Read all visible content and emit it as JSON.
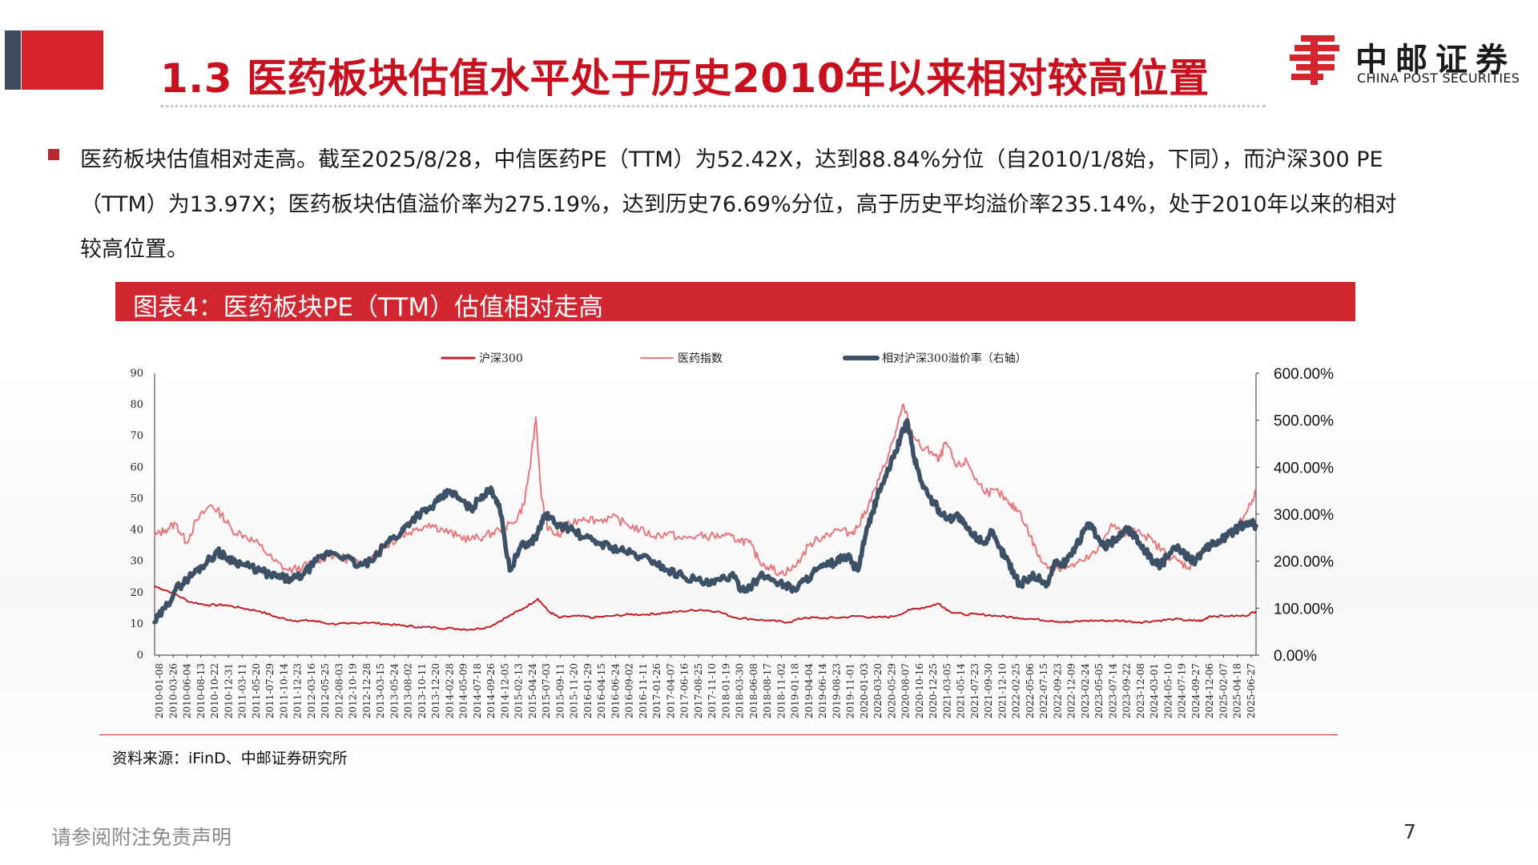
{
  "header": {
    "title": "1.3 医药板块估值水平处于历史2010年以来相对较高位置",
    "logo": {
      "cn": "中邮证券",
      "en": "CHINA POST SECURITIES",
      "icon": "china-post-logo-icon"
    }
  },
  "bullet": {
    "lines": [
      "医药板块估值相对走高。截至2025/8/28，中信医药PE（TTM）为52.42X，达到88.84%分位（自2010/1/8始，下同），而沪深300 PE",
      "（TTM）为13.97X；医药板块估值溢价率为275.19%，达到历史76.69%分位，高于历史平均溢价率235.14%，处于2010年以来的相对",
      "较高位置。"
    ]
  },
  "caption": "图表4：医药板块PE（TTM）估值相对走高",
  "source": "资料来源：iFinD、中邮证券研究所",
  "footer": {
    "disclaimer": "请参阅附注免责声明",
    "page": "7"
  },
  "colors": {
    "accent": "#d22630",
    "hs300": "#c41e24",
    "pharma": "#e8767b",
    "premium": "#3d5166"
  },
  "chart_data": {
    "type": "line",
    "legend_position": "top",
    "grid": false,
    "yleft": {
      "ticks": [
        "0",
        "10",
        "20",
        "30",
        "40",
        "50",
        "60",
        "70",
        "80",
        "90"
      ],
      "lim": [
        0,
        90
      ]
    },
    "yright": {
      "ticks": [
        "0.00%",
        "100.00%",
        "200.00%",
        "300.00%",
        "400.00%",
        "500.00%",
        "600.00%"
      ],
      "lim": [
        0,
        600
      ]
    },
    "x_ticks": [
      "2010-01-08",
      "2010-03-26",
      "2010-06-04",
      "2010-08-13",
      "2010-10-22",
      "2010-12-31",
      "2011-03-11",
      "2011-05-20",
      "2011-07-29",
      "2011-10-14",
      "2011-12-23",
      "2012-03-16",
      "2012-05-25",
      "2012-08-03",
      "2012-10-19",
      "2012-12-28",
      "2013-03-15",
      "2013-05-24",
      "2013-08-02",
      "2013-10-11",
      "2013-12-20",
      "2014-02-28",
      "2014-05-09",
      "2014-07-18",
      "2014-09-26",
      "2014-12-05",
      "2015-02-13",
      "2015-04-24",
      "2015-07-03",
      "2015-09-11",
      "2015-11-20",
      "2016-01-29",
      "2016-04-15",
      "2016-06-24",
      "2016-09-02",
      "2016-11-11",
      "2017-01-26",
      "2017-04-07",
      "2017-06-16",
      "2017-08-25",
      "2017-11-10",
      "2018-01-19",
      "2018-03-30",
      "2018-06-08",
      "2018-08-17",
      "2018-11-02",
      "2019-01-18",
      "2019-04-04",
      "2019-06-14",
      "2019-08-23",
      "2019-11-01",
      "2020-01-03",
      "2020-03-20",
      "2020-05-29",
      "2020-08-07",
      "2020-10-16",
      "2020-12-25",
      "2021-03-05",
      "2021-05-14",
      "2021-07-23",
      "2021-09-30",
      "2021-12-10",
      "2022-02-25",
      "2022-05-06",
      "2022-07-15",
      "2022-09-23",
      "2022-12-09",
      "2023-02-24",
      "2023-05-05",
      "2023-07-14",
      "2023-09-22",
      "2023-12-08",
      "2024-03-01",
      "2024-05-10",
      "2024-07-19",
      "2024-09-27",
      "2024-12-06",
      "2025-02-07",
      "2025-04-18",
      "2025-06-27"
    ],
    "series": [
      {
        "name": "沪深300",
        "axis": "left",
        "x": [
          2010.0,
          2010.25,
          2010.5,
          2010.75,
          2011.0,
          2011.25,
          2011.5,
          2011.75,
          2012.0,
          2012.25,
          2012.5,
          2012.75,
          2013.0,
          2013.25,
          2013.5,
          2013.75,
          2014.0,
          2014.25,
          2014.5,
          2014.75,
          2015.0,
          2015.25,
          2015.45,
          2015.6,
          2015.75,
          2016.0,
          2016.25,
          2016.5,
          2016.75,
          2017.0,
          2017.25,
          2017.5,
          2017.75,
          2018.0,
          2018.25,
          2018.5,
          2018.75,
          2019.0,
          2019.25,
          2019.5,
          2019.75,
          2020.0,
          2020.25,
          2020.5,
          2020.75,
          2021.0,
          2021.15,
          2021.3,
          2021.5,
          2021.75,
          2022.0,
          2022.25,
          2022.5,
          2022.75,
          2023.0,
          2023.25,
          2023.5,
          2023.75,
          2024.0,
          2024.25,
          2024.5,
          2024.75,
          2024.9,
          2025.0,
          2025.25,
          2025.5,
          2025.66
        ],
        "y": [
          22,
          20,
          17,
          16,
          16,
          15,
          14,
          12,
          11,
          11,
          10,
          10,
          10.5,
          10,
          9.5,
          9,
          8.8,
          8.5,
          8.2,
          9,
          12,
          15,
          18,
          14,
          12,
          12.5,
          12,
          12.5,
          13,
          13,
          13.5,
          14,
          14.5,
          14,
          12,
          11.5,
          11,
          10.5,
          12,
          11.8,
          12,
          12.5,
          12,
          12.3,
          14.5,
          15.5,
          16.5,
          14,
          13,
          13,
          12.5,
          12,
          11.5,
          11,
          10.5,
          11,
          11,
          11,
          10.5,
          11,
          11.5,
          11,
          11,
          12.5,
          12.5,
          12.5,
          14
        ]
      },
      {
        "name": "医药指数",
        "axis": "left",
        "x": [
          2010.0,
          2010.15,
          2010.3,
          2010.45,
          2010.6,
          2010.8,
          2010.95,
          2011.1,
          2011.3,
          2011.5,
          2011.7,
          2011.9,
          2012.1,
          2012.3,
          2012.5,
          2012.7,
          2012.9,
          2013.1,
          2013.3,
          2013.5,
          2013.7,
          2013.9,
          2014.1,
          2014.3,
          2014.5,
          2014.7,
          2014.9,
          2015.1,
          2015.25,
          2015.35,
          2015.42,
          2015.5,
          2015.6,
          2015.75,
          2015.9,
          2016.1,
          2016.3,
          2016.5,
          2016.7,
          2016.9,
          2017.1,
          2017.3,
          2017.5,
          2017.7,
          2017.9,
          2018.1,
          2018.3,
          2018.45,
          2018.6,
          2018.75,
          2018.9,
          2019.1,
          2019.3,
          2019.5,
          2019.7,
          2019.9,
          2020.0,
          2020.15,
          2020.3,
          2020.45,
          2020.55,
          2020.65,
          2020.75,
          2020.9,
          2021.05,
          2021.15,
          2021.25,
          2021.4,
          2021.55,
          2021.7,
          2021.85,
          2022.0,
          2022.15,
          2022.3,
          2022.45,
          2022.6,
          2022.8,
          2023.0,
          2023.2,
          2023.4,
          2023.6,
          2023.8,
          2024.0,
          2024.2,
          2024.4,
          2024.55,
          2024.7,
          2024.85,
          2025.0,
          2025.2,
          2025.4,
          2025.55,
          2025.66
        ],
        "y": [
          38,
          40,
          42,
          36,
          43,
          48,
          45,
          40,
          38,
          35,
          30,
          27,
          28,
          30,
          32,
          31,
          29,
          32,
          35,
          38,
          40,
          42,
          40,
          38,
          37,
          38,
          40,
          42,
          48,
          62,
          76,
          50,
          40,
          38,
          42,
          44,
          43,
          44,
          42,
          40,
          38,
          39,
          37,
          38,
          38,
          38,
          37,
          36,
          30,
          28,
          26,
          28,
          35,
          38,
          40,
          39,
          41,
          48,
          56,
          65,
          72,
          80,
          72,
          66,
          65,
          62,
          68,
          60,
          62,
          55,
          52,
          52,
          48,
          46,
          38,
          30,
          28,
          28,
          30,
          33,
          42,
          38,
          40,
          36,
          32,
          30,
          28,
          32,
          35,
          37,
          41,
          47,
          52.42
        ]
      },
      {
        "name": "相对沪深300溢价率（右轴）",
        "axis": "right",
        "x": [
          2010.0,
          2010.15,
          2010.3,
          2010.45,
          2010.6,
          2010.75,
          2010.9,
          2011.0,
          2011.15,
          2011.3,
          2011.5,
          2011.65,
          2011.8,
          2011.95,
          2012.1,
          2012.3,
          2012.5,
          2012.7,
          2012.9,
          2013.1,
          2013.3,
          2013.5,
          2013.6,
          2013.75,
          2013.9,
          2014.05,
          2014.2,
          2014.35,
          2014.5,
          2014.65,
          2014.8,
          2014.9,
          2015.05,
          2015.2,
          2015.35,
          2015.45,
          2015.55,
          2015.7,
          2015.9,
          2016.1,
          2016.3,
          2016.5,
          2016.7,
          2016.9,
          2017.1,
          2017.3,
          2017.5,
          2017.7,
          2017.9,
          2018.05,
          2018.2,
          2018.35,
          2018.5,
          2018.65,
          2018.8,
          2018.95,
          2019.1,
          2019.25,
          2019.4,
          2019.55,
          2019.7,
          2019.85,
          2020.0,
          2020.1,
          2020.2,
          2020.3,
          2020.4,
          2020.5,
          2020.6,
          2020.7,
          2020.8,
          2020.9,
          2021.0,
          2021.1,
          2021.2,
          2021.3,
          2021.4,
          2021.5,
          2021.6,
          2021.7,
          2021.8,
          2021.9,
          2022.0,
          2022.1,
          2022.2,
          2022.3,
          2022.4,
          2022.5,
          2022.6,
          2022.7,
          2022.8,
          2022.9,
          2023.0,
          2023.1,
          2023.2,
          2023.3,
          2023.4,
          2023.5,
          2023.6,
          2023.7,
          2023.8,
          2023.9,
          2024.0,
          2024.1,
          2024.2,
          2024.3,
          2024.4,
          2024.5,
          2024.6,
          2024.7,
          2024.8,
          2024.9,
          2025.0,
          2025.1,
          2025.2,
          2025.3,
          2025.4,
          2025.5,
          2025.6,
          2025.66
        ],
        "y": [
          70,
          100,
          140,
          160,
          180,
          200,
          220,
          210,
          200,
          190,
          180,
          170,
          165,
          160,
          170,
          200,
          220,
          210,
          190,
          200,
          240,
          260,
          280,
          300,
          310,
          330,
          350,
          330,
          310,
          340,
          350,
          320,
          180,
          230,
          240,
          260,
          300,
          280,
          270,
          250,
          240,
          230,
          220,
          210,
          200,
          180,
          170,
          160,
          150,
          160,
          170,
          140,
          150,
          170,
          160,
          150,
          140,
          160,
          180,
          190,
          200,
          210,
          180,
          250,
          300,
          350,
          380,
          420,
          460,
          500,
          420,
          370,
          340,
          320,
          300,
          290,
          300,
          280,
          260,
          250,
          240,
          260,
          230,
          210,
          180,
          150,
          160,
          170,
          160,
          150,
          200,
          190,
          210,
          230,
          260,
          280,
          250,
          230,
          240,
          250,
          270,
          260,
          240,
          220,
          200,
          190,
          210,
          230,
          220,
          210,
          200,
          220,
          230,
          240,
          250,
          260,
          270,
          280,
          285,
          275.19
        ]
      }
    ]
  }
}
